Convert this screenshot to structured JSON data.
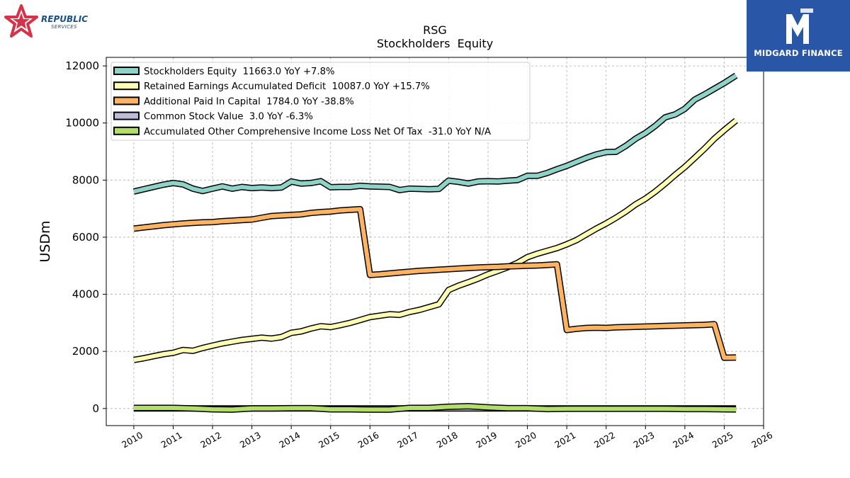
{
  "chart_data": {
    "type": "line",
    "title": "RSG",
    "subtitle": "Stockholders  Equity",
    "ylabel": "USDm",
    "xlabel": "",
    "xlim": [
      2009.3,
      2026.0
    ],
    "ylim": [
      -600,
      12300
    ],
    "x_ticks": [
      "2010",
      "2011",
      "2012",
      "2013",
      "2014",
      "2015",
      "2016",
      "2017",
      "2018",
      "2019",
      "2020",
      "2021",
      "2022",
      "2023",
      "2024",
      "2025",
      "2026"
    ],
    "y_ticks": [
      "0",
      "2000",
      "4000",
      "6000",
      "8000",
      "10000",
      "12000"
    ],
    "grid": true,
    "legend_position": "top-left",
    "series": [
      {
        "name": "Stockholders Equity",
        "legend_label": "Stockholders Equity  11663.0 YoY +7.8%",
        "color": "#8dd3c7",
        "points": [
          [
            2010.0,
            7600
          ],
          [
            2010.25,
            7680
          ],
          [
            2010.5,
            7760
          ],
          [
            2010.75,
            7840
          ],
          [
            2011.0,
            7900
          ],
          [
            2011.25,
            7850
          ],
          [
            2011.5,
            7700
          ],
          [
            2011.75,
            7620
          ],
          [
            2012.0,
            7700
          ],
          [
            2012.25,
            7780
          ],
          [
            2012.5,
            7700
          ],
          [
            2012.75,
            7760
          ],
          [
            2013.0,
            7720
          ],
          [
            2013.25,
            7740
          ],
          [
            2013.5,
            7720
          ],
          [
            2013.75,
            7740
          ],
          [
            2014.0,
            7950
          ],
          [
            2014.25,
            7880
          ],
          [
            2014.5,
            7900
          ],
          [
            2014.75,
            7960
          ],
          [
            2015.0,
            7750
          ],
          [
            2015.25,
            7760
          ],
          [
            2015.5,
            7760
          ],
          [
            2015.75,
            7800
          ],
          [
            2016.0,
            7780
          ],
          [
            2016.25,
            7770
          ],
          [
            2016.5,
            7760
          ],
          [
            2016.75,
            7650
          ],
          [
            2017.0,
            7700
          ],
          [
            2017.25,
            7690
          ],
          [
            2017.5,
            7680
          ],
          [
            2017.75,
            7690
          ],
          [
            2018.0,
            7980
          ],
          [
            2018.25,
            7940
          ],
          [
            2018.5,
            7880
          ],
          [
            2018.75,
            7950
          ],
          [
            2019.0,
            7960
          ],
          [
            2019.25,
            7950
          ],
          [
            2019.5,
            7980
          ],
          [
            2019.75,
            8000
          ],
          [
            2020.0,
            8150
          ],
          [
            2020.25,
            8150
          ],
          [
            2020.5,
            8250
          ],
          [
            2020.75,
            8380
          ],
          [
            2021.0,
            8500
          ],
          [
            2021.25,
            8640
          ],
          [
            2021.5,
            8780
          ],
          [
            2021.75,
            8900
          ],
          [
            2022.0,
            8980
          ],
          [
            2022.25,
            8990
          ],
          [
            2022.5,
            9200
          ],
          [
            2022.75,
            9450
          ],
          [
            2023.0,
            9650
          ],
          [
            2023.25,
            9900
          ],
          [
            2023.5,
            10200
          ],
          [
            2023.75,
            10300
          ],
          [
            2024.0,
            10500
          ],
          [
            2024.25,
            10820
          ],
          [
            2024.5,
            11000
          ],
          [
            2024.75,
            11200
          ],
          [
            2025.0,
            11400
          ],
          [
            2025.3,
            11663
          ]
        ]
      },
      {
        "name": "Retained Earnings Accumulated Deficit",
        "legend_label": "Retained Earnings Accumulated Deficit  10087.0 YoY +15.7%",
        "color": "#ffffb3",
        "points": [
          [
            2010.0,
            1700
          ],
          [
            2010.25,
            1760
          ],
          [
            2010.5,
            1830
          ],
          [
            2010.75,
            1900
          ],
          [
            2011.0,
            1950
          ],
          [
            2011.25,
            2050
          ],
          [
            2011.5,
            2020
          ],
          [
            2011.75,
            2120
          ],
          [
            2012.0,
            2200
          ],
          [
            2012.25,
            2280
          ],
          [
            2012.5,
            2340
          ],
          [
            2012.75,
            2400
          ],
          [
            2013.0,
            2440
          ],
          [
            2013.25,
            2480
          ],
          [
            2013.5,
            2450
          ],
          [
            2013.75,
            2500
          ],
          [
            2014.0,
            2650
          ],
          [
            2014.25,
            2700
          ],
          [
            2014.5,
            2800
          ],
          [
            2014.75,
            2880
          ],
          [
            2015.0,
            2850
          ],
          [
            2015.25,
            2920
          ],
          [
            2015.5,
            3000
          ],
          [
            2015.75,
            3100
          ],
          [
            2016.0,
            3200
          ],
          [
            2016.25,
            3250
          ],
          [
            2016.5,
            3300
          ],
          [
            2016.75,
            3280
          ],
          [
            2017.0,
            3380
          ],
          [
            2017.25,
            3450
          ],
          [
            2017.5,
            3550
          ],
          [
            2017.75,
            3650
          ],
          [
            2018.0,
            4150
          ],
          [
            2018.25,
            4300
          ],
          [
            2018.5,
            4420
          ],
          [
            2018.75,
            4550
          ],
          [
            2019.0,
            4700
          ],
          [
            2019.25,
            4820
          ],
          [
            2019.5,
            4950
          ],
          [
            2019.75,
            5100
          ],
          [
            2020.0,
            5300
          ],
          [
            2020.25,
            5420
          ],
          [
            2020.5,
            5520
          ],
          [
            2020.75,
            5620
          ],
          [
            2021.0,
            5750
          ],
          [
            2021.25,
            5900
          ],
          [
            2021.5,
            6100
          ],
          [
            2021.75,
            6300
          ],
          [
            2022.0,
            6480
          ],
          [
            2022.25,
            6680
          ],
          [
            2022.5,
            6900
          ],
          [
            2022.75,
            7150
          ],
          [
            2023.0,
            7350
          ],
          [
            2023.25,
            7600
          ],
          [
            2023.5,
            7880
          ],
          [
            2023.75,
            8180
          ],
          [
            2024.0,
            8460
          ],
          [
            2024.25,
            8780
          ],
          [
            2024.5,
            9100
          ],
          [
            2024.75,
            9450
          ],
          [
            2025.0,
            9750
          ],
          [
            2025.3,
            10087
          ]
        ]
      },
      {
        "name": "Additional Paid In Capital",
        "legend_label": "Additional Paid In Capital  1784.0 YoY -38.8%",
        "color": "#fdb462",
        "points": [
          [
            2010.0,
            6300
          ],
          [
            2010.25,
            6340
          ],
          [
            2010.5,
            6380
          ],
          [
            2010.75,
            6420
          ],
          [
            2011.0,
            6450
          ],
          [
            2011.25,
            6480
          ],
          [
            2011.5,
            6500
          ],
          [
            2011.75,
            6520
          ],
          [
            2012.0,
            6530
          ],
          [
            2012.25,
            6560
          ],
          [
            2012.5,
            6580
          ],
          [
            2012.75,
            6600
          ],
          [
            2013.0,
            6620
          ],
          [
            2013.25,
            6680
          ],
          [
            2013.5,
            6740
          ],
          [
            2013.75,
            6760
          ],
          [
            2014.0,
            6780
          ],
          [
            2014.25,
            6800
          ],
          [
            2014.5,
            6850
          ],
          [
            2014.75,
            6880
          ],
          [
            2015.0,
            6900
          ],
          [
            2015.25,
            6940
          ],
          [
            2015.5,
            6960
          ],
          [
            2015.75,
            6980
          ],
          [
            2016.0,
            4680
          ],
          [
            2016.25,
            4700
          ],
          [
            2016.5,
            4730
          ],
          [
            2016.75,
            4760
          ],
          [
            2017.0,
            4790
          ],
          [
            2017.25,
            4820
          ],
          [
            2017.5,
            4840
          ],
          [
            2017.75,
            4860
          ],
          [
            2018.0,
            4880
          ],
          [
            2018.25,
            4900
          ],
          [
            2018.5,
            4920
          ],
          [
            2018.75,
            4940
          ],
          [
            2019.0,
            4950
          ],
          [
            2019.25,
            4960
          ],
          [
            2019.5,
            4980
          ],
          [
            2019.75,
            4990
          ],
          [
            2020.0,
            5000
          ],
          [
            2020.25,
            5010
          ],
          [
            2020.5,
            5030
          ],
          [
            2020.75,
            5050
          ],
          [
            2021.0,
            2750
          ],
          [
            2021.25,
            2790
          ],
          [
            2021.5,
            2820
          ],
          [
            2021.75,
            2830
          ],
          [
            2022.0,
            2820
          ],
          [
            2022.25,
            2840
          ],
          [
            2022.5,
            2850
          ],
          [
            2022.75,
            2860
          ],
          [
            2023.0,
            2870
          ],
          [
            2023.25,
            2880
          ],
          [
            2023.5,
            2890
          ],
          [
            2023.75,
            2900
          ],
          [
            2024.0,
            2910
          ],
          [
            2024.25,
            2920
          ],
          [
            2024.5,
            2930
          ],
          [
            2024.75,
            2950
          ],
          [
            2025.0,
            1780
          ],
          [
            2025.3,
            1784
          ]
        ]
      },
      {
        "name": "Common Stock Value",
        "legend_label": "Common Stock Value  3.0 YoY -6.3%",
        "color": "#bebada",
        "points": [
          [
            2010.0,
            4
          ],
          [
            2012.0,
            4
          ],
          [
            2014.0,
            4
          ],
          [
            2016.0,
            3
          ],
          [
            2018.0,
            3
          ],
          [
            2020.0,
            3
          ],
          [
            2022.0,
            3
          ],
          [
            2024.0,
            3
          ],
          [
            2025.3,
            3
          ]
        ]
      },
      {
        "name": "Accumulated Other Comprehensive Income Loss Net Of Tax",
        "legend_label": "Accumulated Other Comprehensive Income Loss Net Of Tax  -31.0 YoY N/A",
        "color": "#b3de69",
        "points": [
          [
            2010.0,
            20
          ],
          [
            2010.5,
            20
          ],
          [
            2011.0,
            20
          ],
          [
            2011.5,
            0
          ],
          [
            2012.0,
            -30
          ],
          [
            2012.5,
            -40
          ],
          [
            2013.0,
            0
          ],
          [
            2013.5,
            0
          ],
          [
            2014.0,
            10
          ],
          [
            2014.5,
            10
          ],
          [
            2015.0,
            -30
          ],
          [
            2015.5,
            -30
          ],
          [
            2016.0,
            -40
          ],
          [
            2016.5,
            -40
          ],
          [
            2017.0,
            20
          ],
          [
            2017.5,
            20
          ],
          [
            2018.0,
            60
          ],
          [
            2018.5,
            80
          ],
          [
            2019.0,
            40
          ],
          [
            2019.5,
            10
          ],
          [
            2020.0,
            10
          ],
          [
            2020.5,
            -20
          ],
          [
            2021.0,
            -10
          ],
          [
            2021.5,
            -10
          ],
          [
            2022.0,
            -10
          ],
          [
            2022.5,
            -10
          ],
          [
            2023.0,
            -10
          ],
          [
            2023.5,
            -10
          ],
          [
            2024.0,
            -20
          ],
          [
            2024.5,
            -20
          ],
          [
            2025.0,
            -30
          ],
          [
            2025.3,
            -31
          ]
        ]
      }
    ]
  },
  "logos": {
    "left_brand_line1": "REPUBLIC",
    "left_brand_line2": "SERVICES",
    "left_logo_color": "#d6334a",
    "right_brand": "MIDGARD FINANCE",
    "right_logo_color": "#2a56a8"
  }
}
